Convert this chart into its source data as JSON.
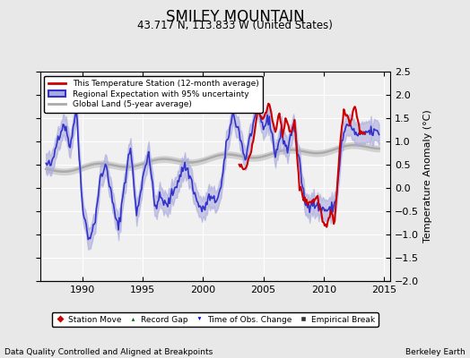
{
  "title": "SMILEY MOUNTAIN",
  "subtitle": "43.717 N, 113.833 W (United States)",
  "ylabel": "Temperature Anomaly (°C)",
  "xlim": [
    1986.5,
    2015.5
  ],
  "ylim": [
    -2.0,
    2.5
  ],
  "yticks": [
    -2,
    -1.5,
    -1,
    -0.5,
    0,
    0.5,
    1,
    1.5,
    2,
    2.5
  ],
  "xticks": [
    1990,
    1995,
    2000,
    2005,
    2010,
    2015
  ],
  "bg_color": "#e8e8e8",
  "plot_bg_color": "#f0f0f0",
  "grid_color": "#ffffff",
  "station_line_color": "#cc0000",
  "regional_line_color": "#3333cc",
  "regional_fill_color": "#aaaadd",
  "global_line_color": "#aaaaaa",
  "global_fill_color": "#cccccc",
  "footer_left": "Data Quality Controlled and Aligned at Breakpoints",
  "footer_right": "Berkeley Earth",
  "legend1_labels": [
    "This Temperature Station (12-month average)",
    "Regional Expectation with 95% uncertainty",
    "Global Land (5-year average)"
  ],
  "legend2_labels": [
    "Station Move",
    "Record Gap",
    "Time of Obs. Change",
    "Empirical Break"
  ],
  "legend2_markers": [
    "D",
    "^",
    "v",
    "s"
  ],
  "legend2_colors": [
    "#cc0000",
    "#006600",
    "#0000cc",
    "#333333"
  ]
}
